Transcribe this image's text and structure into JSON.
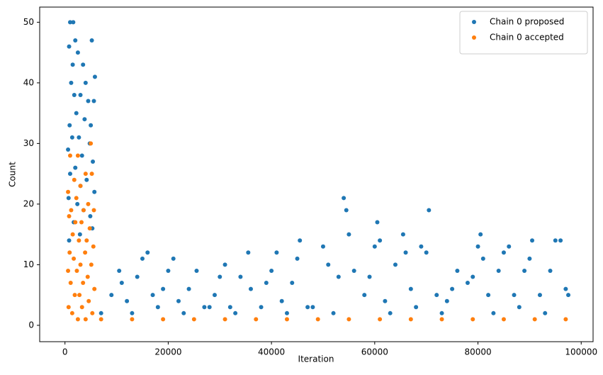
{
  "chart_data": {
    "type": "scatter",
    "xlabel": "Iteration",
    "ylabel": "Count",
    "xlim": [
      -4900,
      102300
    ],
    "ylim": [
      -2.7,
      52.5
    ],
    "xticks": [
      0,
      20000,
      40000,
      60000,
      80000,
      100000
    ],
    "yticks": [
      0,
      10,
      20,
      30,
      40,
      50
    ],
    "grid": false,
    "legend": "upper right",
    "series": [
      {
        "name": "Chain 0 proposed",
        "color": "#1f77b4",
        "x": [
          1000,
          1600,
          800,
          2000,
          5200,
          2500,
          1500,
          3500,
          5800,
          1200,
          4000,
          3000,
          1800,
          4500,
          5600,
          2200,
          3800,
          900,
          5000,
          1400,
          2700,
          4800,
          600,
          3300,
          5400,
          2000,
          1000,
          4200,
          3000,
          5700,
          700,
          2400,
          3600,
          4900,
          1700,
          5300,
          2900,
          800,
          10500,
          11000,
          9000,
          12000,
          15000,
          16000,
          14000,
          17000,
          20000,
          21000,
          19000,
          22000,
          25500,
          24000,
          27000,
          30000,
          31000,
          29000,
          32000,
          35500,
          34000,
          36000,
          38000,
          40000,
          41000,
          39000,
          42000,
          45000,
          45500,
          44000,
          47000,
          50000,
          51000,
          53000,
          54000,
          54500,
          55000,
          56000,
          58000,
          60000,
          60500,
          61000,
          59000,
          62000,
          65500,
          64000,
          66000,
          67000,
          69000,
          70500,
          70000,
          72000,
          74000,
          76000,
          75000,
          78000,
          80000,
          80500,
          81000,
          79000,
          82000,
          85000,
          86000,
          84000,
          87000,
          90000,
          90500,
          89000,
          92000,
          95000,
          96000,
          94000,
          97000,
          97500,
          7000,
          13000,
          23000,
          33000,
          43000,
          52000,
          63000,
          73000,
          83000,
          93000,
          18000,
          28000,
          48000,
          68000,
          88000
        ],
        "values": [
          50,
          50,
          46,
          47,
          47,
          45,
          43,
          43,
          41,
          40,
          40,
          38,
          38,
          37,
          37,
          35,
          34,
          33,
          33,
          31,
          31,
          30,
          29,
          28,
          27,
          26,
          25,
          24,
          23,
          22,
          21,
          20,
          19,
          18,
          17,
          16,
          15,
          14,
          9,
          7,
          5,
          4,
          11,
          12,
          8,
          5,
          9,
          11,
          6,
          4,
          9,
          6,
          3,
          8,
          10,
          5,
          3,
          12,
          8,
          6,
          3,
          9,
          12,
          7,
          4,
          11,
          14,
          7,
          3,
          13,
          10,
          8,
          21,
          19,
          15,
          9,
          5,
          13,
          17,
          14,
          8,
          4,
          15,
          10,
          12,
          6,
          13,
          19,
          12,
          5,
          4,
          9,
          6,
          7,
          13,
          15,
          11,
          8,
          5,
          12,
          13,
          9,
          5,
          11,
          14,
          9,
          5,
          14,
          14,
          9,
          6,
          5,
          2,
          2,
          2,
          2,
          2,
          2,
          2,
          2,
          2,
          2,
          3,
          3,
          3,
          3,
          3
        ]
      },
      {
        "name": "Chain 0 accepted",
        "color": "#ff7f0e",
        "x": [
          5000,
          1000,
          2500,
          1800,
          4000,
          5200,
          3000,
          600,
          2200,
          4500,
          1200,
          3600,
          5600,
          800,
          2000,
          3200,
          4800,
          1500,
          2700,
          4200,
          5500,
          900,
          3900,
          1700,
          3000,
          5100,
          600,
          2300,
          4400,
          1100,
          3500,
          5700,
          1900,
          2800,
          4600,
          700,
          3300,
          5300,
          1400,
          2500,
          4000,
          7000,
          13000,
          19000,
          25000,
          31000,
          37000,
          43000,
          49000,
          55000,
          61000,
          67000,
          73000,
          79000,
          85000,
          91000,
          97000
        ],
        "values": [
          30,
          28,
          28,
          24,
          25,
          25,
          23,
          22,
          21,
          20,
          19,
          19,
          19,
          18,
          17,
          17,
          16,
          15,
          14,
          14,
          13,
          12,
          12,
          11,
          10,
          10,
          9,
          9,
          8,
          7,
          7,
          6,
          5,
          5,
          4,
          3,
          3,
          2,
          2,
          1,
          1,
          1,
          1,
          1,
          1,
          1,
          1,
          1,
          1,
          1,
          1,
          1,
          1,
          1,
          1,
          1,
          1
        ]
      }
    ]
  }
}
